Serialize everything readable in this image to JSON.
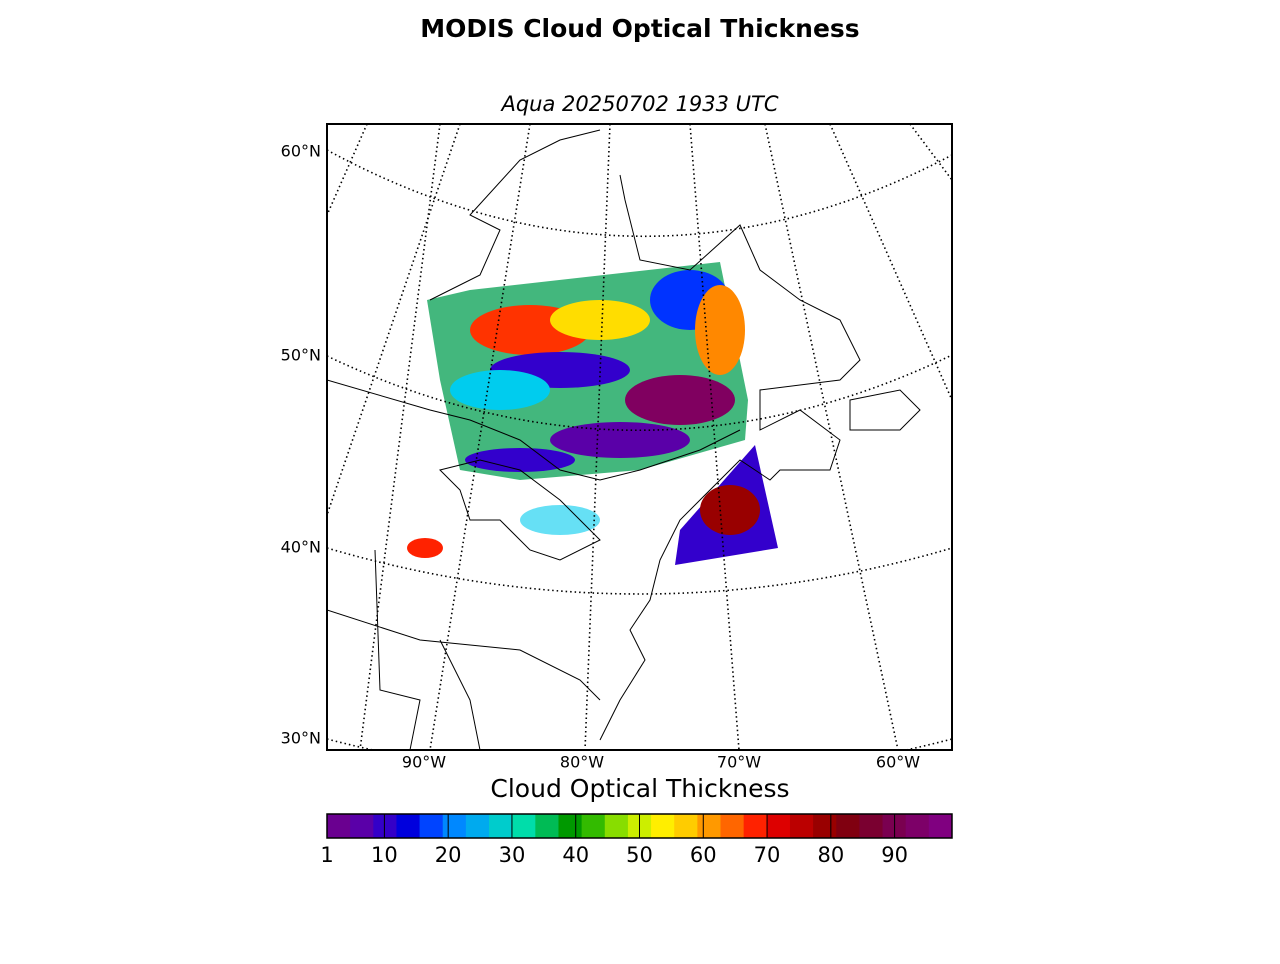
{
  "title": "MODIS Cloud Optical Thickness",
  "subtitle": "Aqua 20250702 1933 UTC",
  "map": {
    "lat_labels": [
      "60°N",
      "50°N",
      "40°N",
      "30°N"
    ],
    "lon_labels": [
      "90°W",
      "80°W",
      "70°W",
      "60°W"
    ]
  },
  "colorbar": {
    "label": "Cloud Optical Thickness",
    "range": [
      1,
      99
    ],
    "ticks": [
      1,
      10,
      20,
      30,
      40,
      50,
      60,
      70,
      80,
      90
    ],
    "colors": [
      "#6a0090",
      "#5a00a8",
      "#3400c8",
      "#0000dd",
      "#0044ff",
      "#0088ff",
      "#00aaee",
      "#00cccc",
      "#00ddaa",
      "#00bb55",
      "#009900",
      "#33bb00",
      "#88dd00",
      "#ccee00",
      "#ffee00",
      "#ffcc00",
      "#ff9900",
      "#ff6600",
      "#ff2200",
      "#dd0000",
      "#bb0000",
      "#990000",
      "#800010",
      "#7a0030",
      "#7a0050",
      "#7d0068",
      "#800080"
    ]
  }
}
